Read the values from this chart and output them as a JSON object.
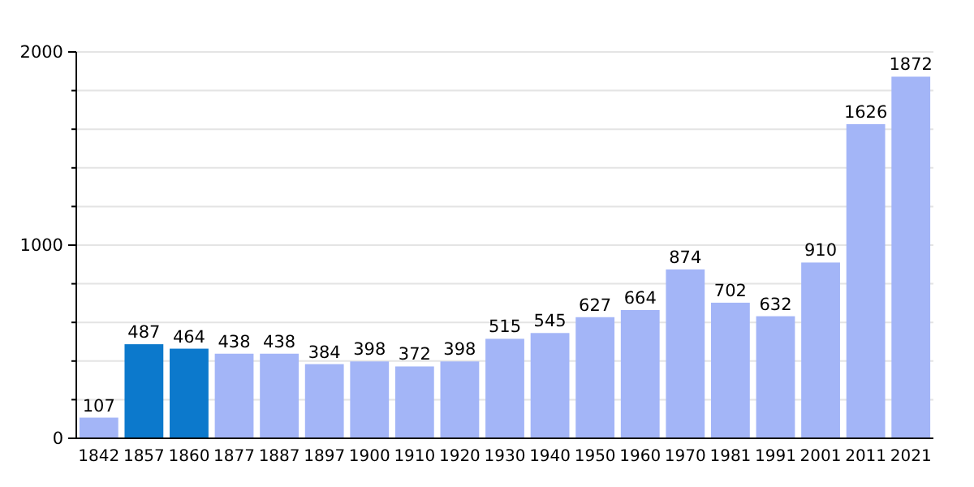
{
  "chart_data": {
    "type": "bar",
    "categories": [
      "1842",
      "1857",
      "1860",
      "1877",
      "1887",
      "1897",
      "1900",
      "1910",
      "1920",
      "1930",
      "1940",
      "1950",
      "1960",
      "1970",
      "1981",
      "1991",
      "2001",
      "2011",
      "2021"
    ],
    "values": [
      107,
      487,
      464,
      438,
      438,
      384,
      398,
      372,
      398,
      515,
      545,
      627,
      664,
      874,
      702,
      632,
      910,
      1626,
      1872
    ],
    "colors": [
      "#a3b5f7",
      "#0c79cc",
      "#0c79cc",
      "#a3b5f7",
      "#a3b5f7",
      "#a3b5f7",
      "#a3b5f7",
      "#a3b5f7",
      "#a3b5f7",
      "#a3b5f7",
      "#a3b5f7",
      "#a3b5f7",
      "#a3b5f7",
      "#a3b5f7",
      "#a3b5f7",
      "#a3b5f7",
      "#a3b5f7",
      "#a3b5f7",
      "#a3b5f7"
    ],
    "ylim": [
      0,
      2000
    ],
    "yticks": [
      0,
      {
        "value": 200,
        "label": null
      },
      {
        "value": 400,
        "label": null
      },
      {
        "value": 600,
        "label": null
      },
      {
        "value": 800,
        "label": null
      },
      1000,
      {
        "value": 1200,
        "label": null
      },
      {
        "value": 1400,
        "label": null
      },
      {
        "value": 1600,
        "label": null
      },
      {
        "value": 1800,
        "label": null
      },
      2000
    ],
    "grid": true,
    "data_labels": true
  }
}
